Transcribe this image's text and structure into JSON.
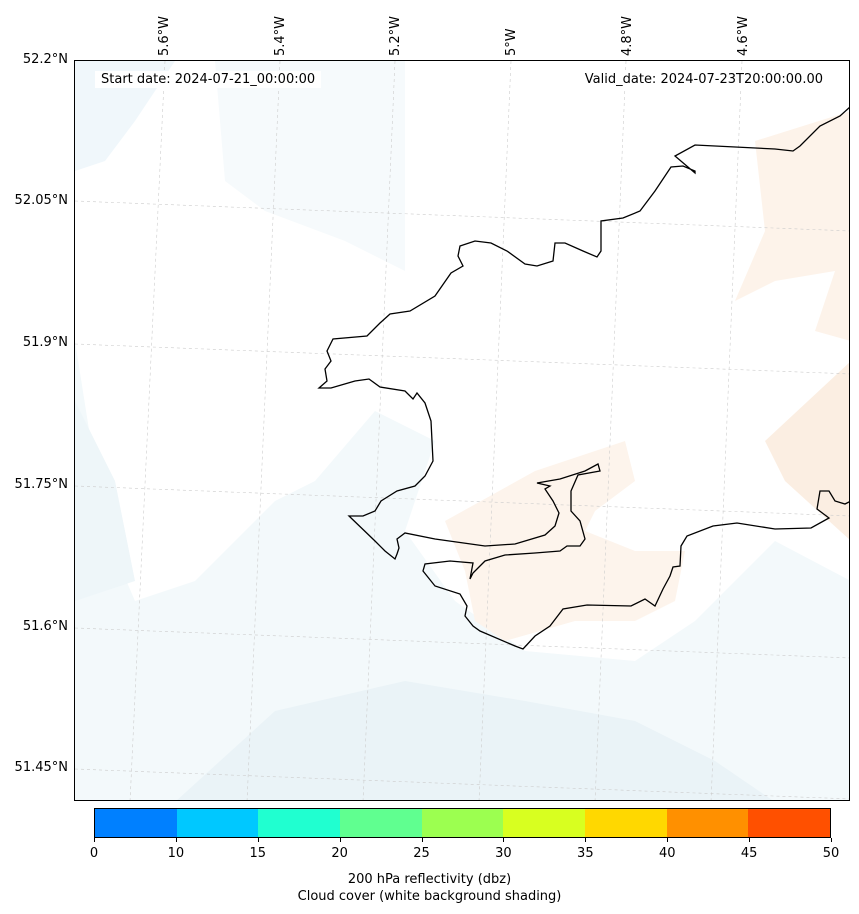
{
  "map": {
    "start_label": "Start date: 2024-07-21_00:00:00",
    "valid_label": "Valid_date: 2024-07-23T20:00:00.00",
    "lon_ticks": [
      "5.6°W",
      "5.4°W",
      "5.2°W",
      "5°W",
      "4.8°W",
      "4.6°W"
    ],
    "lat_ticks": [
      "52.2°N",
      "52.05°N",
      "51.9°N",
      "51.75°N",
      "51.6°N",
      "51.45°N"
    ]
  },
  "colorbar": {
    "ticks": [
      "0",
      "10",
      "15",
      "20",
      "25",
      "30",
      "35",
      "40",
      "45",
      "50"
    ],
    "colors": [
      "#0080ff",
      "#00c8ff",
      "#20ffd0",
      "#60ff90",
      "#9cff50",
      "#d8ff20",
      "#ffd800",
      "#ff9000",
      "#ff5000"
    ],
    "label_line1": "200 hPa reflectivity (dbz)",
    "label_line2": "Cloud cover (white background shading)"
  }
}
